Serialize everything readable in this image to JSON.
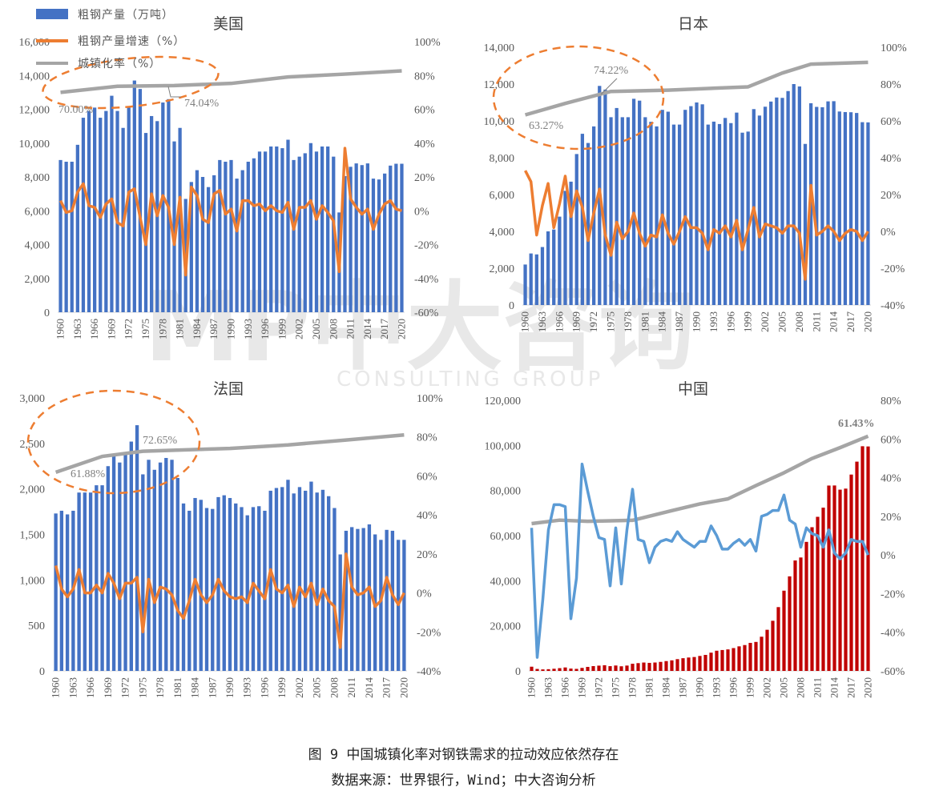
{
  "colors": {
    "bar": "#4472C4",
    "growth": "#ED7D31",
    "urban": "#A5A5A5",
    "china_bar": "#C00000",
    "china_growth": "#5B9BD5",
    "annotation": "#ED7D31"
  },
  "legend": {
    "bar": "粗钢产量（万吨）",
    "growth": "粗钢产量增速（%）",
    "urban": "城镇化率（%）"
  },
  "watermark": {
    "logo": "MP中大咨询",
    "sub": "CONSULTING GROUP"
  },
  "caption": {
    "title": "图 9 中国城镇化率对钢铁需求的拉动效应依然存在",
    "source": "数据来源：世界银行，Wind；中大咨询分析"
  },
  "chart_data": [
    {
      "id": "us",
      "type": "bar+line",
      "title": "美国",
      "x_start": 1960,
      "x_end": 2020,
      "year_ticks": [
        "1960",
        "1963",
        "1966",
        "1969",
        "1972",
        "1975",
        "1978",
        "1981",
        "1984",
        "1987",
        "1990",
        "1993",
        "1996",
        "1999",
        "2002",
        "2005",
        "2008",
        "2011",
        "2014",
        "2017",
        "2020"
      ],
      "left_axis": {
        "ylim": [
          0,
          16000
        ],
        "ticks": [
          "0",
          "2,000",
          "4,000",
          "6,000",
          "8,000",
          "10,000",
          "12,000",
          "14,000",
          "16,000"
        ]
      },
      "right_axis": {
        "ylim": [
          -60,
          100
        ],
        "ticks": [
          "-60%",
          "-40%",
          "-20%",
          "0%",
          "20%",
          "40%",
          "60%",
          "80%",
          "100%"
        ]
      },
      "production": [
        9000,
        8900,
        8900,
        9900,
        11500,
        11900,
        12100,
        11500,
        11900,
        12800,
        11900,
        10900,
        12100,
        13700,
        13200,
        10600,
        11600,
        11300,
        12400,
        12600,
        10100,
        10900,
        6700,
        7700,
        8400,
        8000,
        7400,
        8100,
        9000,
        8900,
        9000,
        7900,
        8400,
        8900,
        9100,
        9500,
        9500,
        9800,
        9800,
        9700,
        10200,
        9000,
        9200,
        9400,
        10000,
        9500,
        9800,
        9800,
        9200,
        5900,
        8050,
        8600,
        8800,
        8700,
        8800,
        7900,
        7850,
        8200,
        8670,
        8780,
        8780
      ],
      "growth": [
        6,
        -1,
        0,
        11,
        16,
        3,
        2,
        -4,
        4,
        7,
        -7,
        -9,
        11,
        13,
        -4,
        -20,
        10,
        -3,
        9,
        2,
        -20,
        8,
        -38,
        14,
        9,
        -5,
        -7,
        10,
        12,
        -2,
        1,
        -12,
        6,
        6,
        3,
        4,
        0,
        3,
        0,
        -1,
        5,
        -11,
        2,
        2,
        6,
        -5,
        3,
        -1,
        -6,
        -36,
        37,
        7,
        2,
        -2,
        1,
        -11,
        -2,
        4,
        6,
        1,
        0
      ],
      "urbanization": [
        [
          1960,
          70.0
        ],
        [
          1970,
          73.6
        ],
        [
          1980,
          74.04
        ],
        [
          1990,
          75.3
        ],
        [
          2000,
          79.1
        ],
        [
          2010,
          80.8
        ],
        [
          2020,
          82.7
        ]
      ],
      "annotations": [
        "70.00%",
        "74.04%"
      ]
    },
    {
      "id": "jp",
      "type": "bar+line",
      "title": "日本",
      "x_start": 1960,
      "x_end": 2020,
      "year_ticks": [
        "1960",
        "1963",
        "1966",
        "1969",
        "1972",
        "1975",
        "1978",
        "1981",
        "1984",
        "1987",
        "1990",
        "1993",
        "1996",
        "1999",
        "2002",
        "2005",
        "2008",
        "2011",
        "2014",
        "2017",
        "2020"
      ],
      "left_axis": {
        "ylim": [
          0,
          14000
        ],
        "ticks": [
          "0",
          "2,000",
          "4,000",
          "6,000",
          "8,000",
          "10,000",
          "12,000",
          "14,000"
        ]
      },
      "right_axis": {
        "ylim": [
          -40,
          100
        ],
        "ticks": [
          "-40%",
          "-20%",
          "0%",
          "20%",
          "40%",
          "60%",
          "80%",
          "100%"
        ]
      },
      "production": [
        2200,
        2800,
        2750,
        3150,
        4000,
        4100,
        4800,
        6200,
        6700,
        8200,
        9300,
        8800,
        9700,
        11900,
        11700,
        10200,
        10700,
        10200,
        10200,
        11200,
        11100,
        10200,
        9950,
        9700,
        10600,
        10500,
        9800,
        9800,
        10600,
        10800,
        11000,
        10900,
        9800,
        9960,
        9830,
        10160,
        9880,
        10450,
        9360,
        9420,
        10640,
        10290,
        10770,
        11050,
        11270,
        11250,
        11620,
        12000,
        11870,
        8750,
        10960,
        10760,
        10740,
        11060,
        11070,
        10510,
        10480,
        10470,
        10430,
        9930,
        9920
      ],
      "growth": [
        33,
        27,
        -2,
        14,
        26,
        2,
        15,
        30,
        8,
        22,
        13,
        -5,
        10,
        23,
        -2,
        -13,
        5,
        -4,
        0,
        10,
        -1,
        -8,
        -2,
        -3,
        9,
        -1,
        -7,
        0,
        8,
        2,
        2,
        -1,
        -10,
        1,
        -1,
        3,
        -3,
        6,
        -10,
        1,
        13,
        -3,
        4,
        3,
        2,
        -1,
        3,
        3,
        -1,
        -26,
        25,
        -2,
        0,
        3,
        0,
        -5,
        -1,
        1,
        0,
        -5,
        0
      ],
      "urbanization": [
        [
          1960,
          63.27
        ],
        [
          1967,
          69.5
        ],
        [
          1975,
          76.0
        ],
        [
          1985,
          76.7
        ],
        [
          1999,
          78.5
        ],
        [
          2005,
          86.0
        ],
        [
          2010,
          90.8
        ],
        [
          2020,
          91.8
        ]
      ],
      "annotations": [
        "63.27%",
        "74.22%"
      ]
    },
    {
      "id": "fr",
      "type": "bar+line",
      "title": "法国",
      "x_start": 1960,
      "x_end": 2020,
      "year_ticks": [
        "1960",
        "1963",
        "1966",
        "1969",
        "1972",
        "1975",
        "1978",
        "1981",
        "1984",
        "1987",
        "1990",
        "1993",
        "1996",
        "1999",
        "2002",
        "2005",
        "2008",
        "2011",
        "2014",
        "2017",
        "2020"
      ],
      "left_axis": {
        "ylim": [
          0,
          3000
        ],
        "ticks": [
          "0",
          "500",
          "1,000",
          "1,500",
          "2,000",
          "2,500",
          "3,000"
        ]
      },
      "right_axis": {
        "ylim": [
          -40,
          100
        ],
        "ticks": [
          "-40%",
          "-20%",
          "0%",
          "20%",
          "40%",
          "60%",
          "80%",
          "100%"
        ]
      },
      "production": [
        1730,
        1760,
        1720,
        1760,
        1960,
        1960,
        1960,
        2040,
        2040,
        2250,
        2370,
        2290,
        2400,
        2520,
        2700,
        2160,
        2320,
        2210,
        2290,
        2340,
        2320,
        2120,
        1840,
        1760,
        1900,
        1880,
        1790,
        1780,
        1910,
        1930,
        1900,
        1840,
        1800,
        1710,
        1800,
        1810,
        1760,
        1980,
        2010,
        2020,
        2100,
        1950,
        2020,
        1980,
        2080,
        1960,
        1990,
        1920,
        1790,
        1280,
        1540,
        1580,
        1560,
        1570,
        1610,
        1500,
        1440,
        1550,
        1540,
        1440,
        1440
      ],
      "growth": [
        14,
        2,
        -2,
        2,
        12,
        0,
        0,
        4,
        0,
        10,
        5,
        -3,
        5,
        5,
        8,
        -20,
        7,
        -5,
        3,
        2,
        -1,
        -9,
        -13,
        -4,
        7,
        -1,
        -5,
        -1,
        7,
        1,
        -2,
        -3,
        -2,
        -5,
        5,
        1,
        -3,
        12,
        2,
        0,
        4,
        -7,
        3,
        -2,
        5,
        -6,
        2,
        -4,
        -7,
        -28,
        20,
        3,
        -1,
        0,
        3,
        -7,
        -4,
        8,
        -1,
        -6,
        0
      ],
      "urbanization": [
        [
          1960,
          61.88
        ],
        [
          1968,
          70.0
        ],
        [
          1975,
          72.65
        ],
        [
          1990,
          74.1
        ],
        [
          2000,
          75.9
        ],
        [
          2010,
          78.4
        ],
        [
          2020,
          81.0
        ]
      ],
      "annotations": [
        "61.88%",
        "72.65%"
      ]
    },
    {
      "id": "cn",
      "type": "bar+line",
      "title": "中国",
      "x_start": 1960,
      "x_end": 2020,
      "year_ticks": [
        "1960",
        "1963",
        "1966",
        "1969",
        "1972",
        "1975",
        "1978",
        "1981",
        "1984",
        "1987",
        "1990",
        "1993",
        "1996",
        "1999",
        "2002",
        "2005",
        "2008",
        "2011",
        "2014",
        "2017",
        "2020"
      ],
      "left_axis": {
        "ylim": [
          0,
          120000
        ],
        "ticks": [
          "0",
          "20,000",
          "40,000",
          "60,000",
          "80,000",
          "100,000",
          "120,000"
        ]
      },
      "right_axis": {
        "ylim": [
          -60,
          80
        ],
        "ticks": [
          "-60%",
          "-40%",
          "-20%",
          "0%",
          "20%",
          "40%",
          "60%",
          "80%"
        ]
      },
      "production": [
        1866,
        870,
        670,
        760,
        960,
        1220,
        1530,
        1030,
        900,
        1330,
        1780,
        2130,
        2340,
        2520,
        2110,
        2390,
        2050,
        2370,
        3180,
        3450,
        3710,
        3560,
        3720,
        4000,
        4350,
        4680,
        5220,
        5630,
        5940,
        6160,
        6640,
        7100,
        8090,
        8950,
        9260,
        9540,
        10120,
        10890,
        11460,
        12430,
        12850,
        15160,
        18240,
        22230,
        28290,
        35580,
        41920,
        48970,
        50300,
        57220,
        63720,
        68330,
        72390,
        82200,
        82230,
        80380,
        80840,
        87070,
        92800,
        99630,
        99530
      ],
      "growth": [
        14,
        -53,
        -23,
        13,
        26,
        26,
        25,
        -33,
        -12,
        47,
        33,
        20,
        9,
        8,
        -16,
        14,
        -15,
        13,
        34,
        8,
        7,
        -4,
        4,
        7,
        8,
        7,
        12,
        8,
        6,
        4,
        7,
        7,
        15,
        10,
        3,
        3,
        6,
        8,
        5,
        8,
        2,
        20,
        21,
        23,
        23,
        31,
        18,
        16,
        4,
        14,
        11,
        10,
        4,
        13,
        1,
        -2,
        1,
        8,
        7,
        7,
        0
      ],
      "urbanization": [
        [
          1960,
          16.2
        ],
        [
          1965,
          18.0
        ],
        [
          1970,
          17.4
        ],
        [
          1978,
          17.9
        ],
        [
          1985,
          22.9
        ],
        [
          1990,
          26.4
        ],
        [
          1995,
          29.0
        ],
        [
          2000,
          35.9
        ],
        [
          2005,
          42.5
        ],
        [
          2010,
          49.9
        ],
        [
          2015,
          55.5
        ],
        [
          2020,
          61.43
        ]
      ],
      "annotations": [
        "61.43%"
      ]
    }
  ]
}
